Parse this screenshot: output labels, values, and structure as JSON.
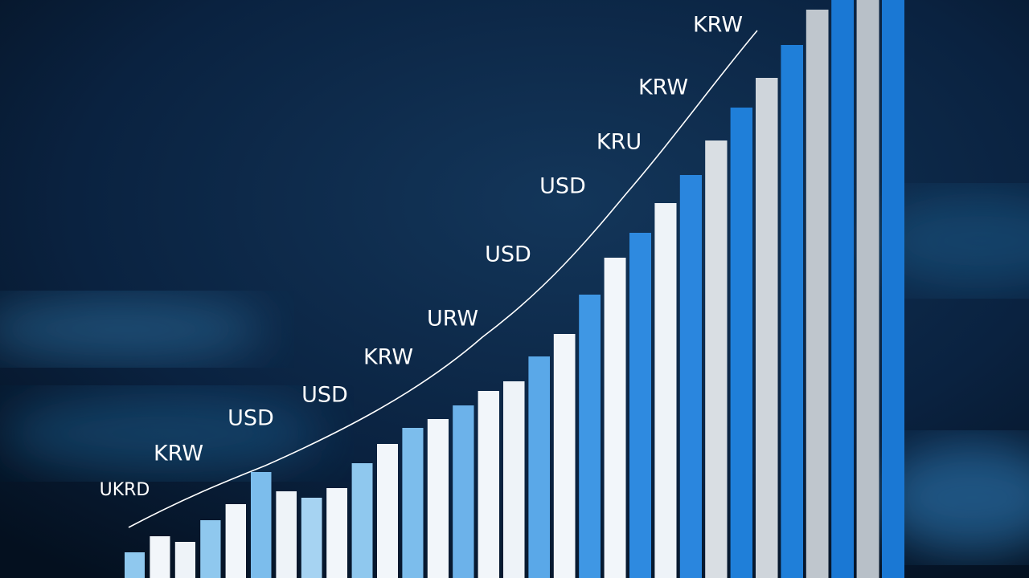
{
  "chart_data": {
    "type": "bar",
    "categories": [
      null,
      null,
      null,
      null,
      null,
      null,
      null,
      null,
      null,
      null,
      null,
      null,
      null,
      null,
      null,
      null,
      null,
      null,
      null,
      null,
      null,
      null,
      null,
      null,
      null,
      null,
      null,
      null,
      null,
      null,
      null
    ],
    "values": [
      32,
      52,
      45,
      72,
      92,
      132,
      108,
      100,
      112,
      143,
      167,
      187,
      198,
      215,
      233,
      245,
      276,
      304,
      353,
      399,
      430,
      467,
      502,
      545,
      586,
      623,
      664,
      708,
      720,
      720,
      720
    ],
    "colors": [
      "#8fc8ee",
      "#f2f6fa",
      "#eef3f8",
      "#8fc8ee",
      "#f2f6fa",
      "#7cbdec",
      "#eef3f8",
      "#a6d3f2",
      "#f2f6fa",
      "#8fc8ee",
      "#f2f6fa",
      "#7cbdec",
      "#f2f6fa",
      "#6cb2ea",
      "#f2f6fa",
      "#eef3f8",
      "#5aa8e8",
      "#f2f6fa",
      "#3f97e4",
      "#f2f6fa",
      "#2e8ae0",
      "#eef3f8",
      "#2a86de",
      "#d9dee3",
      "#1f7fd9",
      "#cfd5db",
      "#1f7fd9",
      "#bfc6cd",
      "#1a78d4",
      "#b8c0c8",
      "#1a78d4"
    ],
    "ylim": [
      0,
      720
    ],
    "annotations": [
      "KRW",
      "KRW",
      "KRU",
      "USD",
      "USD",
      "URW",
      "KRW",
      "USD",
      "USD",
      "KRW",
      "UKRD"
    ]
  }
}
